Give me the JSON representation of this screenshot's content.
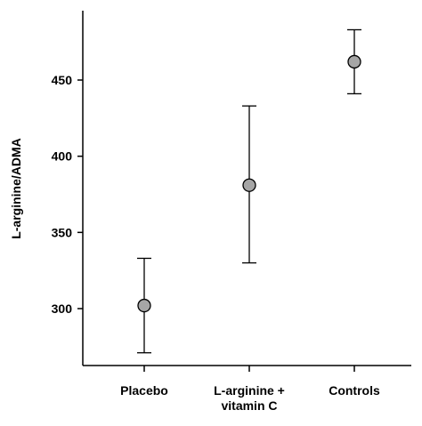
{
  "chart_data": {
    "type": "scatter",
    "title": "",
    "xlabel": "",
    "ylabel": "L-arginine/ADMA",
    "ylim": [
      265,
      485
    ],
    "yticks": [
      300,
      350,
      400,
      450
    ],
    "categories": [
      [
        "Placebo"
      ],
      [
        "L-arginine +",
        "vitamin C"
      ],
      [
        "Controls"
      ]
    ],
    "points": [
      {
        "category": "Placebo",
        "mean": 302,
        "lower": 271,
        "upper": 333
      },
      {
        "category": "L-arginine + vitamin C",
        "mean": 381,
        "lower": 330,
        "upper": 433
      },
      {
        "category": "Controls",
        "mean": 462,
        "lower": 441,
        "upper": 483
      }
    ],
    "grid": false,
    "marker_color": "#a6a6a6",
    "line_color": "#000000"
  }
}
